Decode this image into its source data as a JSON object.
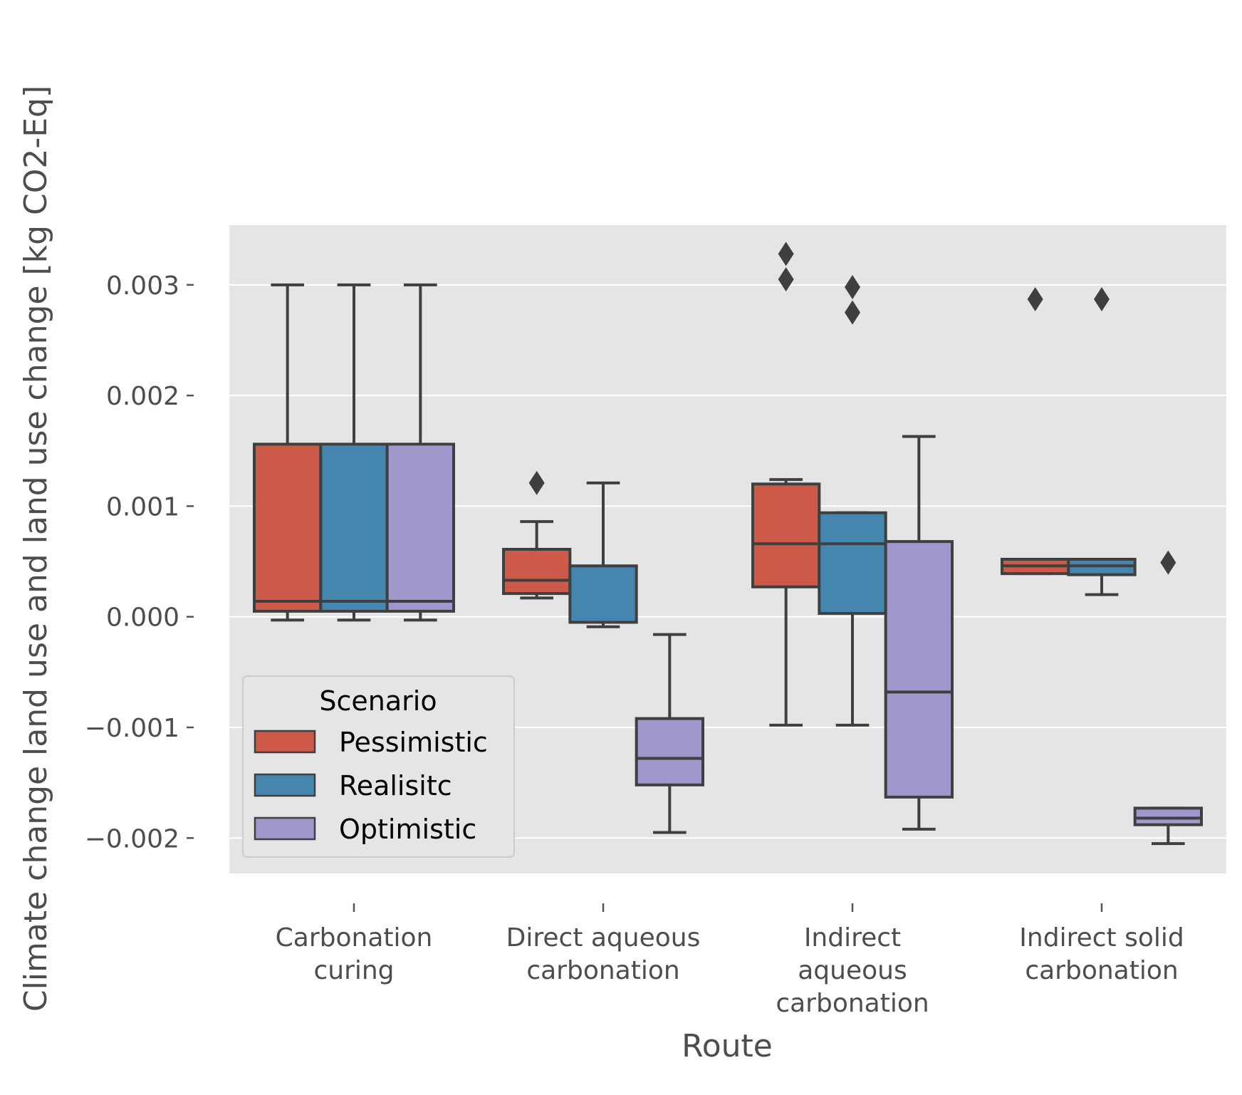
{
  "chart_data": {
    "type": "box",
    "title": "",
    "xlabel": "Route",
    "ylabel": "Climate change land use and land use change [kg CO2-Eq]",
    "ylim": [
      -0.00232,
      0.00354
    ],
    "yticks": [
      -0.002,
      -0.001,
      0.0,
      0.001,
      0.002,
      0.003
    ],
    "ytick_labels": [
      "−0.002",
      "−0.001",
      "0.000",
      "0.001",
      "0.002",
      "0.003"
    ],
    "grid": true,
    "categories": [
      [
        "Carbonation",
        "curing"
      ],
      [
        "Direct aqueous",
        "carbonation"
      ],
      [
        "Indirect",
        "aqueous",
        "carbonation"
      ],
      [
        "Indirect solid",
        "carbonation"
      ]
    ],
    "legend": {
      "title": "Scenario",
      "position": "lower-left"
    },
    "series": [
      {
        "name": "Pessimistic",
        "color": "#cd5a49",
        "boxes": [
          {
            "whisker_low": -3e-05,
            "q1": 5e-05,
            "median": 0.00014,
            "q3": 0.00156,
            "whisker_high": 0.003,
            "outliers": []
          },
          {
            "whisker_low": 0.00017,
            "q1": 0.00021,
            "median": 0.00033,
            "q3": 0.00061,
            "whisker_high": 0.00086,
            "outliers": [
              0.00121
            ]
          },
          {
            "whisker_low": -0.00098,
            "q1": 0.00027,
            "median": 0.00066,
            "q3": 0.0012,
            "whisker_high": 0.00124,
            "outliers": [
              0.00305,
              0.00328
            ]
          },
          {
            "whisker_low": 0.00039,
            "q1": 0.00039,
            "median": 0.00046,
            "q3": 0.00052,
            "whisker_high": 0.00052,
            "outliers": [
              0.00287
            ]
          }
        ]
      },
      {
        "name": "Realisitc",
        "color": "#4586ae",
        "boxes": [
          {
            "whisker_low": -3e-05,
            "q1": 5e-05,
            "median": 0.00014,
            "q3": 0.00156,
            "whisker_high": 0.003,
            "outliers": []
          },
          {
            "whisker_low": -9e-05,
            "q1": -5e-05,
            "median": -5e-05,
            "q3": 0.00046,
            "whisker_high": 0.00121,
            "outliers": []
          },
          {
            "whisker_low": -0.00098,
            "q1": 3e-05,
            "median": 0.00066,
            "q3": 0.00094,
            "whisker_high": 0.00094,
            "outliers": [
              0.00275,
              0.00298
            ]
          },
          {
            "whisker_low": 0.0002,
            "q1": 0.00038,
            "median": 0.00046,
            "q3": 0.00052,
            "whisker_high": 0.00052,
            "outliers": [
              0.00287
            ]
          }
        ]
      },
      {
        "name": "Optimistic",
        "color": "#9e98cc",
        "boxes": [
          {
            "whisker_low": -3e-05,
            "q1": 5e-05,
            "median": 0.00014,
            "q3": 0.00156,
            "whisker_high": 0.003,
            "outliers": []
          },
          {
            "whisker_low": -0.00195,
            "q1": -0.00152,
            "median": -0.00128,
            "q3": -0.00092,
            "whisker_high": -0.00016,
            "outliers": []
          },
          {
            "whisker_low": -0.00192,
            "q1": -0.00163,
            "median": -0.00068,
            "q3": 0.00068,
            "whisker_high": 0.00163,
            "outliers": []
          },
          {
            "whisker_low": -0.00205,
            "q1": -0.00188,
            "median": -0.00182,
            "q3": -0.00173,
            "whisker_high": -0.00173,
            "outliers": [
              0.00049
            ]
          }
        ]
      }
    ]
  }
}
